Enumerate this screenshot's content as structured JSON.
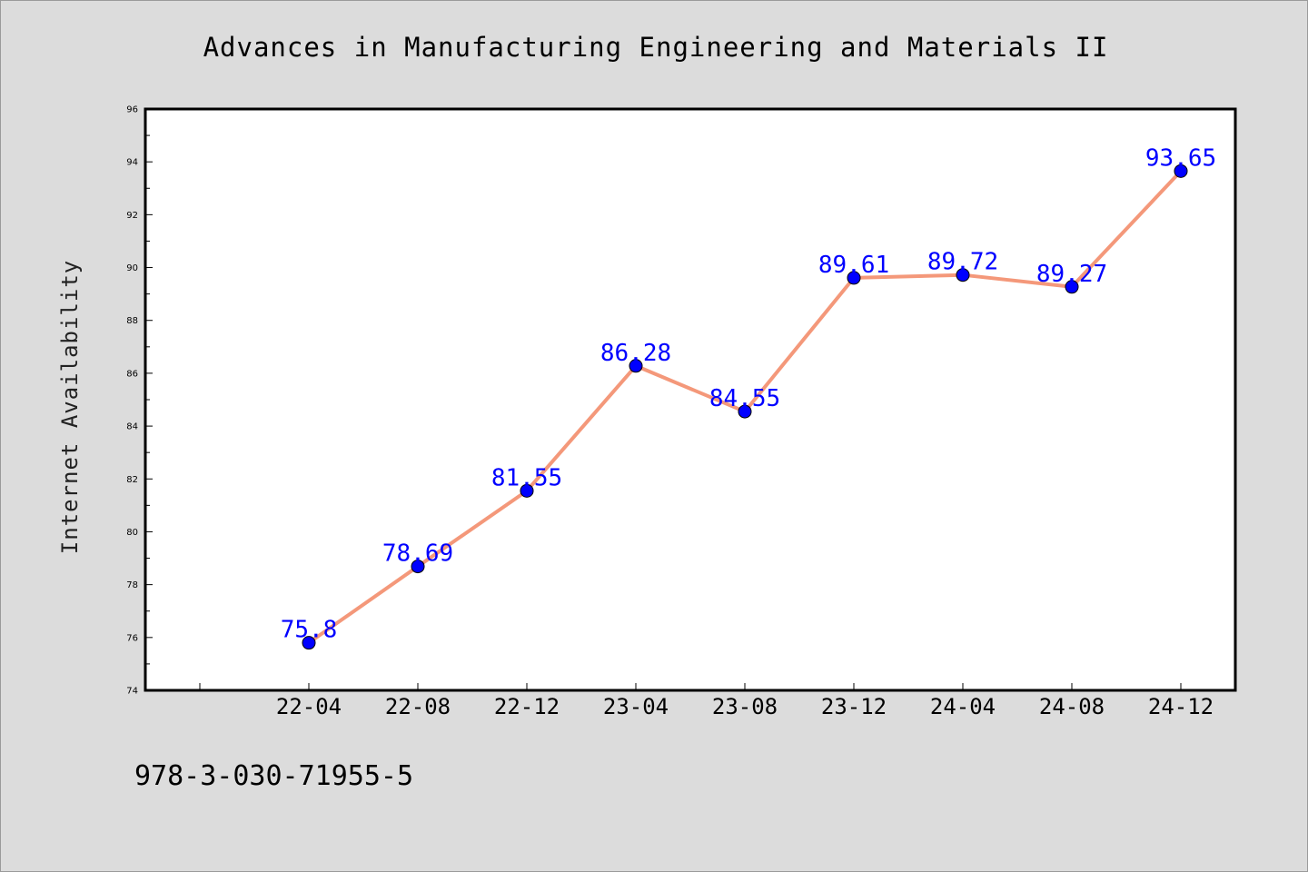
{
  "footer_text": "978-3-030-71955-5",
  "colors": {
    "background": "#dcdcdc",
    "plot_background": "#ffffff",
    "line": "#f4987a",
    "marker": "#0000ff",
    "data_label": "#0000ff"
  },
  "chart_data": {
    "type": "line",
    "title": "Advances in Manufacturing Engineering and Materials II",
    "xlabel": "",
    "ylabel": "Internet Availability",
    "categories": [
      "22-04",
      "22-08",
      "22-12",
      "23-04",
      "23-08",
      "23-12",
      "24-04",
      "24-08",
      "24-12"
    ],
    "values": [
      75.8,
      78.69,
      81.55,
      86.28,
      84.55,
      89.61,
      89.72,
      89.27,
      93.65
    ],
    "data_labels": [
      "75.8",
      "78.69",
      "81.55",
      "86.28",
      "84.55",
      "89.61",
      "89.72",
      "89.27",
      "93.65"
    ],
    "ylim": [
      74,
      96
    ],
    "yticks": [
      74,
      76,
      78,
      80,
      82,
      84,
      86,
      88,
      90,
      92,
      94,
      96
    ],
    "grid": false,
    "legend": "none"
  }
}
